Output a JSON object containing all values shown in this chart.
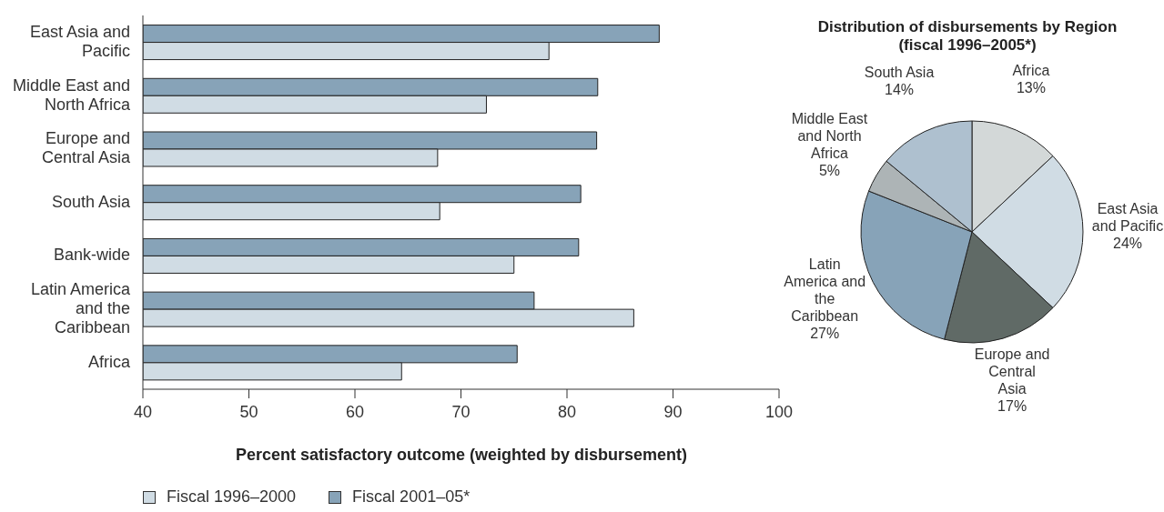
{
  "chart_data": [
    {
      "type": "bar",
      "orientation": "horizontal",
      "xlabel": "Percent satisfactory outcome (weighted by disbursement)",
      "categories": [
        "East Asia and Pacific",
        "Middle East and North Africa",
        "Europe and Central Asia",
        "South Asia",
        "Bank-wide",
        "Latin America and the Caribbean",
        "Africa"
      ],
      "series": [
        {
          "name": "Fiscal 1996–2000",
          "color": "#d0dce4",
          "values": [
            78.3,
            72.4,
            67.8,
            68.0,
            75.0,
            86.3,
            64.4
          ]
        },
        {
          "name": "Fiscal 2001–05*",
          "color": "#87a3b8",
          "values": [
            88.7,
            82.9,
            82.8,
            81.3,
            81.1,
            76.9,
            75.3
          ]
        }
      ],
      "xlim": [
        40,
        100
      ],
      "xticks": [
        40,
        50,
        60,
        70,
        80,
        90,
        100
      ],
      "grid": false,
      "legend": "bottom left"
    },
    {
      "type": "pie",
      "title": "Distribution of disbursements by Region (fiscal 1996–2005*)",
      "categories": [
        "Africa",
        "East Asia and Pacific",
        "Europe and Central Asia",
        "Latin America and the Caribbean",
        "Middle East and North Africa",
        "South Asia"
      ],
      "values": [
        13,
        24,
        17,
        27,
        5,
        14
      ],
      "value_labels": [
        "13%",
        "24%",
        "17%",
        "27%",
        "5%",
        "14%"
      ],
      "colors": [
        "#d3d8d8",
        "#d0dce4",
        "#606a66",
        "#87a3b8",
        "#adb4b6",
        "#aec0cf"
      ]
    }
  ]
}
